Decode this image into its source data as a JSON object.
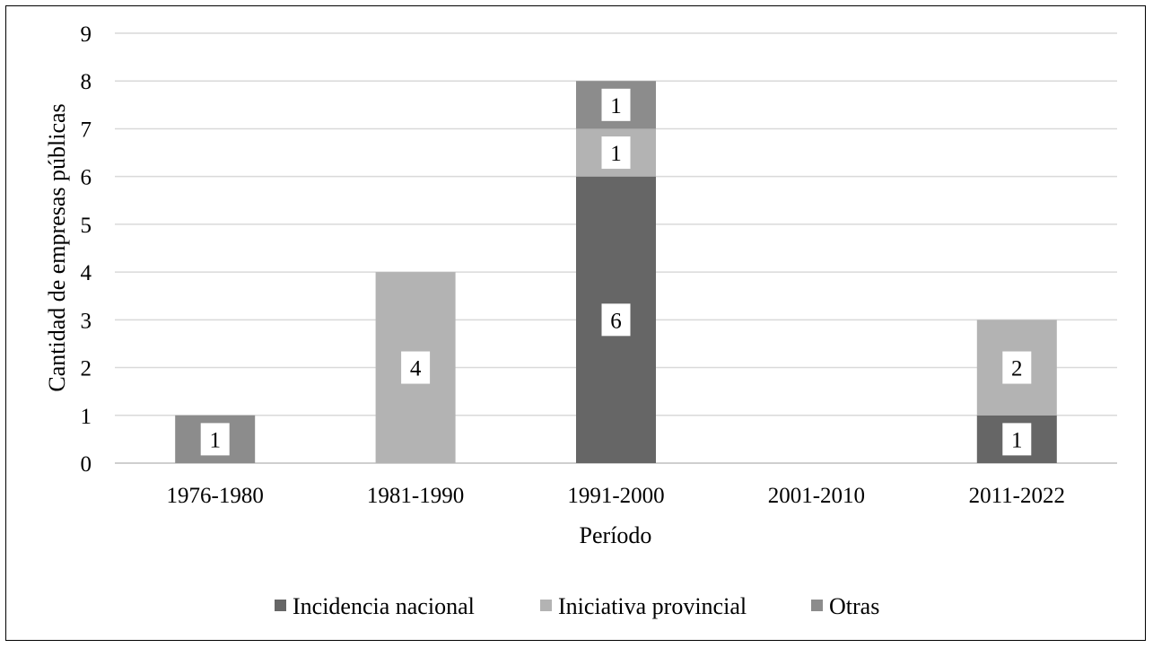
{
  "chart_data": {
    "type": "bar",
    "stacked": true,
    "title": "",
    "xlabel": "Período",
    "ylabel": "Cantidad de empresas públicas",
    "ylim": [
      0,
      9
    ],
    "yticks": [
      0,
      1,
      2,
      3,
      4,
      5,
      6,
      7,
      8,
      9
    ],
    "grid": true,
    "legend_position": "bottom",
    "categories": [
      "1976-1980",
      "1981-1990",
      "1991-2000",
      "2001-2010",
      "2011-2022"
    ],
    "series": [
      {
        "name": "Incidencia nacional",
        "color": "#666666",
        "values": [
          0,
          0,
          6,
          0,
          1
        ]
      },
      {
        "name": "Iniciativa provincial",
        "color": "#b3b3b3",
        "values": [
          0,
          4,
          1,
          0,
          2
        ]
      },
      {
        "name": "Otras",
        "color": "#8c8c8c",
        "values": [
          1,
          0,
          1,
          0,
          0
        ]
      }
    ]
  }
}
